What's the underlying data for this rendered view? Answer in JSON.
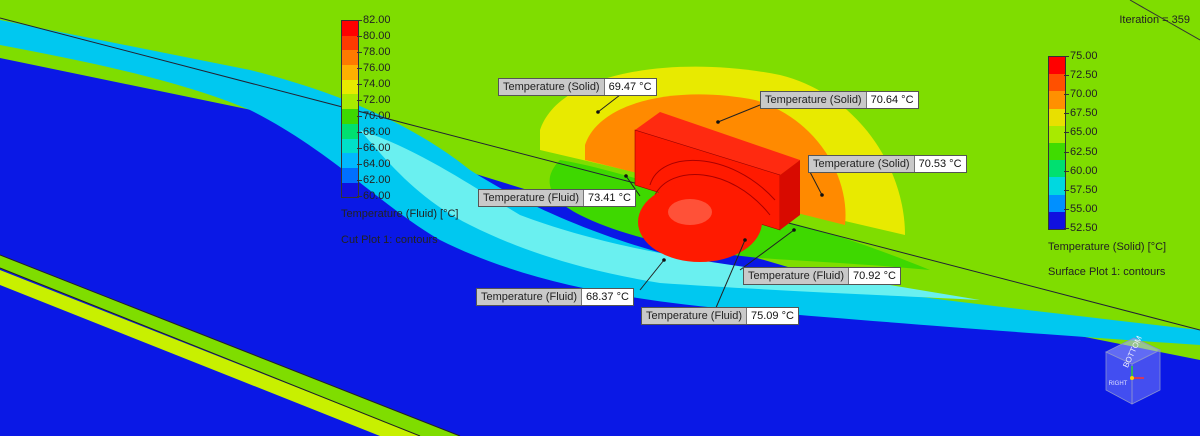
{
  "iteration_label": "Iteration = 359",
  "fluid_legend": {
    "ticks": [
      "82.00",
      "80.00",
      "78.00",
      "76.00",
      "74.00",
      "72.00",
      "70.00",
      "68.00",
      "66.00",
      "64.00",
      "62.00",
      "60.00"
    ],
    "colors": [
      "#ff0000",
      "#ff3a00",
      "#ff7a00",
      "#ffb000",
      "#e8ea00",
      "#a8ea00",
      "#3ed800",
      "#00e070",
      "#00e0c8",
      "#00b8ff",
      "#0070ff",
      "#1010e0"
    ],
    "title": "Temperature (Fluid) [°C]",
    "subtitle": "Cut Plot 1: contours"
  },
  "solid_legend": {
    "ticks": [
      "75.00",
      "72.50",
      "70.00",
      "67.50",
      "65.00",
      "62.50",
      "60.00",
      "57.50",
      "55.00",
      "52.50"
    ],
    "colors": [
      "#ff0000",
      "#ff5000",
      "#ff9000",
      "#e8e000",
      "#a8ea00",
      "#40dc00",
      "#00e070",
      "#00d8e0",
      "#0090ff",
      "#1010e0"
    ],
    "title": "Temperature (Solid) [°C]",
    "subtitle": "Surface Plot 1: contours"
  },
  "probes": [
    {
      "label": "Temperature (Solid)",
      "value": "69.47 °C"
    },
    {
      "label": "Temperature (Solid)",
      "value": "70.64 °C"
    },
    {
      "label": "Temperature (Solid)",
      "value": "70.53 °C"
    },
    {
      "label": "Temperature (Fluid)",
      "value": "73.41 °C"
    },
    {
      "label": "Temperature (Fluid)",
      "value": "70.92 °C"
    },
    {
      "label": "Temperature (Fluid)",
      "value": "68.37 °C"
    },
    {
      "label": "Temperature (Fluid)",
      "value": "75.09 °C"
    }
  ],
  "triad": {
    "face_top": "BOTTOM",
    "face_front": "RIGHT"
  },
  "colors": {
    "background": "#7fdd00",
    "fluid_cold": "#0a18e6",
    "hot": "#ff1a00"
  }
}
